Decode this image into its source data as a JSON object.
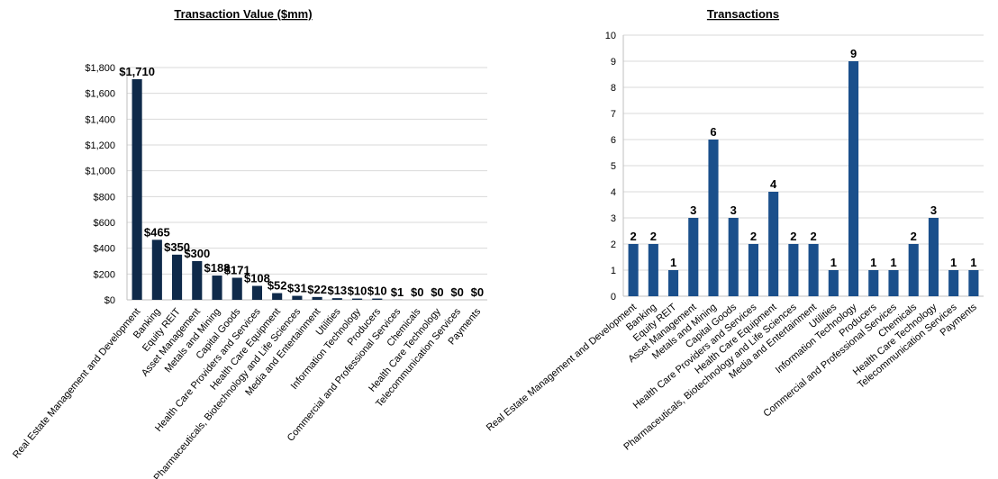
{
  "chart_data": [
    {
      "type": "bar",
      "title": "Transaction Value ($mm)",
      "xlabel": "",
      "ylabel": "",
      "ylim": [
        0,
        1800
      ],
      "yticks": [
        0,
        200,
        400,
        600,
        800,
        1000,
        1200,
        1400,
        1600,
        1800
      ],
      "ytick_labels": [
        "$0",
        "$200",
        "$400",
        "$600",
        "$800",
        "$1,000",
        "$1,200",
        "$1,400",
        "$1,600",
        "$1,800"
      ],
      "grid": true,
      "legend": "none",
      "bar_color": "#0f2a4a",
      "categories": [
        "Real Estate Management and Development",
        "Banking",
        "Equity REIT",
        "Asset Management",
        "Metals and Mining",
        "Capital Goods",
        "Health Care Providers and Services",
        "Health Care Equipment",
        "Pharmaceuticals, Biotechnology and Life Sciences",
        "Media and Entertainment",
        "Utilities",
        "Information Technology",
        "Producers",
        "Commercial and Professional Services",
        "Chemicals",
        "Health Care Technology",
        "Telecommunication Services",
        "Payments"
      ],
      "values": [
        1710,
        465,
        350,
        300,
        188,
        171,
        108,
        52,
        31,
        22,
        13,
        10,
        10,
        1,
        0,
        0,
        0,
        0
      ],
      "data_labels": [
        "$1,710",
        "$465",
        "$350",
        "$300",
        "$188",
        "$171",
        "$108",
        "$52",
        "$31",
        "$22",
        "$13",
        "$10",
        "$10",
        "$1",
        "$0",
        "$0",
        "$0",
        "$0"
      ]
    },
    {
      "type": "bar",
      "title": "Transactions",
      "xlabel": "",
      "ylabel": "",
      "ylim": [
        0,
        10
      ],
      "yticks": [
        0,
        1,
        2,
        3,
        4,
        5,
        6,
        7,
        8,
        9,
        10
      ],
      "ytick_labels": [
        "0",
        "1",
        "2",
        "3",
        "4",
        "5",
        "6",
        "7",
        "8",
        "9",
        "10"
      ],
      "grid": true,
      "legend": "none",
      "bar_color": "#1a4f8b",
      "categories": [
        "Real Estate Management and Development",
        "Banking",
        "Equity REIT",
        "Asset Management",
        "Metals and Mining",
        "Capital Goods",
        "Health Care Providers and Services",
        "Health Care Equipment",
        "Pharmaceuticals, Biotechnology and Life Sciences",
        "Media and Entertainment",
        "Utilities",
        "Information Technology",
        "Producers",
        "Commercial and Professional Services",
        "Chemicals",
        "Health Care Technology",
        "Telecommunication Services",
        "Payments"
      ],
      "values": [
        2,
        2,
        1,
        3,
        6,
        3,
        2,
        4,
        2,
        2,
        1,
        9,
        1,
        1,
        2,
        3,
        1,
        1
      ],
      "data_labels": [
        "2",
        "2",
        "1",
        "3",
        "6",
        "3",
        "2",
        "4",
        "2",
        "2",
        "1",
        "9",
        "1",
        "1",
        "2",
        "3",
        "1",
        "1"
      ]
    }
  ]
}
